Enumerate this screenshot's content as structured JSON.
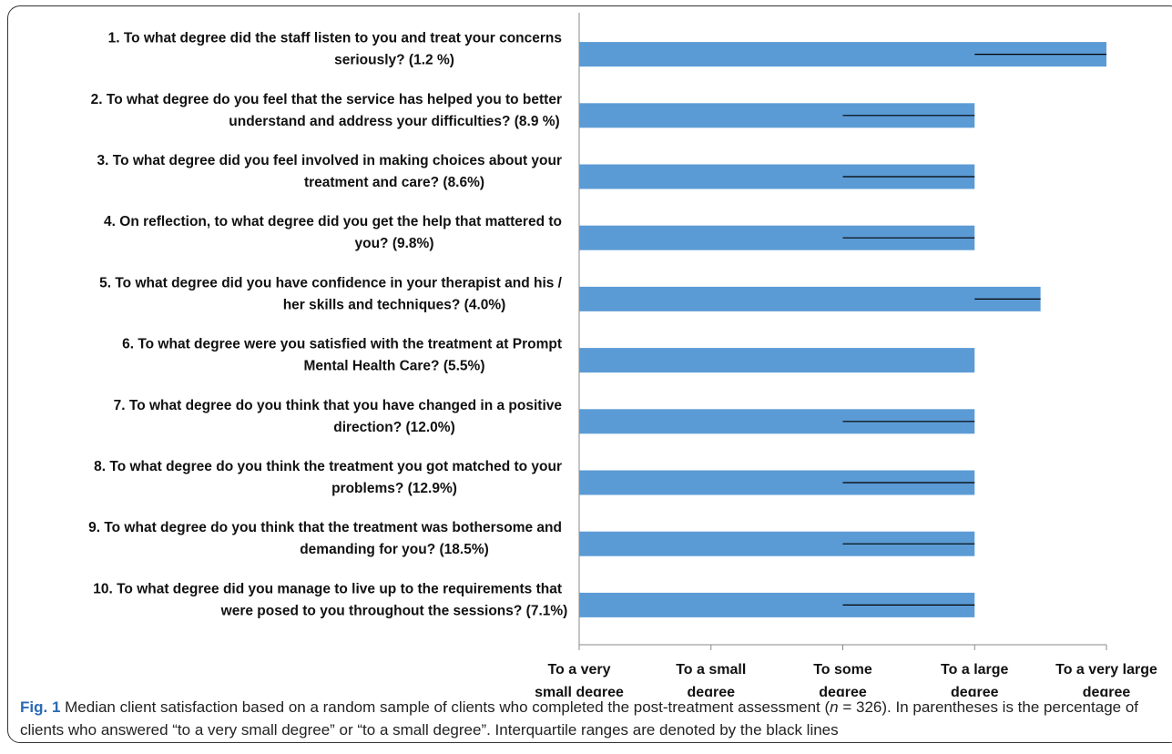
{
  "chart_data": {
    "type": "bar",
    "orientation": "horizontal",
    "categories": [
      [
        "1. To what degree did the staff listen to you and treat your concerns",
        "seriously? (1.2 %)"
      ],
      [
        "2. To what degree do you feel that the service has helped you to better",
        "understand and address your difficulties? (8.9 %)"
      ],
      [
        "3. To what degree did you feel involved in making choices about your",
        "treatment and care? (8.6%)"
      ],
      [
        "4. On reflection, to what degree did you get the help that mattered to",
        "you? (9.8%)"
      ],
      [
        "5. To what degree did you have confidence in your therapist and his /",
        "her skills and techniques? (4.0%)"
      ],
      [
        "6. To what degree were you satisfied with the treatment at Prompt",
        "Mental Health Care? (5.5%)"
      ],
      [
        "7. To what degree do you think that you have changed in a positive",
        "direction? (12.0%)"
      ],
      [
        "8. To what degree do you think the treatment you got matched to your",
        "problems? (12.9%)"
      ],
      [
        "9. To what degree do you think that the treatment was bothersome and",
        "demanding for you? (18.5%)"
      ],
      [
        "10. To what degree did you manage to live up to the requirements that",
        "were posed to you throughout the sessions? (7.1%)"
      ]
    ],
    "median": [
      5,
      4,
      4,
      4,
      4.5,
      4,
      4,
      4,
      4,
      4
    ],
    "iqr": [
      [
        4,
        5
      ],
      [
        3,
        4
      ],
      [
        3,
        4
      ],
      [
        3,
        4
      ],
      [
        4,
        4.5
      ],
      null,
      [
        3,
        4
      ],
      [
        3,
        4
      ],
      [
        3,
        4
      ],
      [
        3,
        4
      ]
    ],
    "xlim": [
      1,
      5
    ],
    "xticks": [
      1,
      2,
      3,
      4,
      5
    ],
    "xtick_labels": [
      [
        "To a very",
        "small degree"
      ],
      [
        "To a small",
        "degree"
      ],
      [
        "To some",
        "degree"
      ],
      [
        "To a large",
        "degree"
      ],
      [
        "To a very large",
        "degree"
      ]
    ],
    "bar_color": "#5b9bd5",
    "iqr_color": "#000000",
    "grid": false,
    "legend": "none"
  },
  "caption": {
    "fig_label": "Fig. 1",
    "text_before_n": " Median client satisfaction based on a random sample of clients who completed the post-treatment assessment (",
    "n_symbol": "n",
    "text_after_n": " = 326). In parentheses is the percentage of clients who answered “to a very small degree” or “to a small degree”. Interquartile ranges are denoted by the black lines"
  }
}
